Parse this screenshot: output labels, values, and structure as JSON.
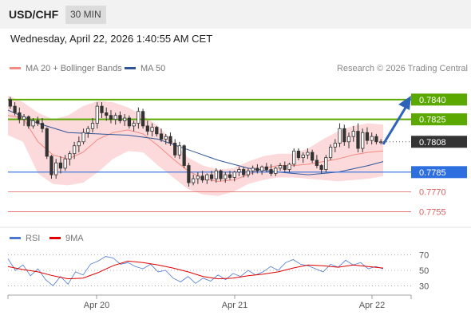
{
  "header": {
    "symbol": "USD/CHF",
    "timeframe": "30 MIN"
  },
  "datetime": "Wednesday, April 22, 2026 1:40:55 AM CET",
  "legend": {
    "main": [
      {
        "label": "MA 20 + Bollinger Bands",
        "color": "#f28b82"
      },
      {
        "label": "MA 50",
        "color": "#2f5597"
      }
    ],
    "credit": "Research © 2026 Trading Central",
    "indicator": [
      {
        "label": "RSI",
        "color": "#4a78d0"
      },
      {
        "label": "9MA",
        "color": "#e00000"
      }
    ]
  },
  "colors": {
    "resistance": "#5aa800",
    "support": "#2e6fe0",
    "support_weak": "#e06060",
    "current": "#333333",
    "arrow": "#2e63b8",
    "candle_up": "#ffffff",
    "candle_down": "#333333",
    "band_fill": "#fcd9da"
  },
  "chart_data": [
    {
      "type": "line",
      "title": "",
      "x_labels": [
        "Apr 20",
        "Apr 21",
        "Apr 22"
      ],
      "levels": [
        {
          "value": 0.784,
          "label": "0.7840",
          "kind": "resistance"
        },
        {
          "value": 0.7825,
          "label": "0.7825",
          "kind": "resistance"
        },
        {
          "value": 0.7808,
          "label": "0.7808",
          "kind": "current"
        },
        {
          "value": 0.7785,
          "label": "0.7785",
          "kind": "support"
        },
        {
          "value": 0.777,
          "label": "0.7770",
          "kind": "support_weak"
        },
        {
          "value": 0.7755,
          "label": "0.7755",
          "kind": "support_weak"
        }
      ],
      "ylim": [
        0.7745,
        0.7852
      ],
      "series": [
        {
          "name": "MA 20 + Bollinger Bands",
          "style": "band",
          "x": [
            0,
            4,
            8,
            12,
            16,
            20,
            24,
            28,
            32,
            36,
            40,
            44,
            48,
            52,
            56,
            60,
            64,
            68,
            72,
            76,
            80,
            84,
            88,
            92,
            96,
            100
          ],
          "mid": [
            0.7828,
            0.7826,
            0.7808,
            0.7798,
            0.7795,
            0.78,
            0.781,
            0.7815,
            0.7817,
            0.7814,
            0.7805,
            0.7795,
            0.7786,
            0.778,
            0.7778,
            0.7779,
            0.7783,
            0.7788,
            0.779,
            0.779,
            0.7791,
            0.7793,
            0.7795,
            0.7798,
            0.78,
            0.7801
          ],
          "upper": [
            0.7843,
            0.7838,
            0.783,
            0.7825,
            0.7828,
            0.7835,
            0.7839,
            0.7838,
            0.7834,
            0.7828,
            0.782,
            0.7808,
            0.7796,
            0.779,
            0.7787,
            0.7788,
            0.7793,
            0.7797,
            0.7799,
            0.7799,
            0.7803,
            0.781,
            0.7816,
            0.782,
            0.7822,
            0.7821
          ],
          "lower": [
            0.7813,
            0.7808,
            0.7784,
            0.7776,
            0.7775,
            0.7777,
            0.7785,
            0.7795,
            0.7801,
            0.78,
            0.779,
            0.7781,
            0.7772,
            0.7768,
            0.7767,
            0.777,
            0.7776,
            0.7779,
            0.7781,
            0.7781,
            0.778,
            0.7779,
            0.7778,
            0.7779,
            0.778,
            0.7782
          ]
        },
        {
          "name": "MA 50",
          "style": "line",
          "x": [
            0,
            8,
            16,
            24,
            32,
            40,
            48,
            56,
            64,
            72,
            80,
            88,
            96,
            100
          ],
          "values": [
            0.7832,
            0.7822,
            0.7815,
            0.7814,
            0.7813,
            0.781,
            0.7802,
            0.7794,
            0.7788,
            0.7785,
            0.7783,
            0.7785,
            0.779,
            0.7793
          ]
        }
      ],
      "candles": {
        "x_range": [
          0,
          100
        ],
        "ohlc": [
          [
            0.784,
            0.7842,
            0.7833,
            0.7835
          ],
          [
            0.7835,
            0.7838,
            0.7828,
            0.783
          ],
          [
            0.783,
            0.7834,
            0.7822,
            0.7825
          ],
          [
            0.7825,
            0.7829,
            0.782,
            0.7827
          ],
          [
            0.7827,
            0.7828,
            0.7818,
            0.782
          ],
          [
            0.782,
            0.7826,
            0.7818,
            0.7824
          ],
          [
            0.7824,
            0.7827,
            0.782,
            0.7822
          ],
          [
            0.7822,
            0.7826,
            0.7815,
            0.7818
          ],
          [
            0.7818,
            0.7819,
            0.7795,
            0.7797
          ],
          [
            0.7797,
            0.7798,
            0.778,
            0.7783
          ],
          [
            0.7783,
            0.7795,
            0.778,
            0.7792
          ],
          [
            0.7792,
            0.7797,
            0.7784,
            0.7788
          ],
          [
            0.7788,
            0.7798,
            0.7786,
            0.7795
          ],
          [
            0.7795,
            0.7801,
            0.779,
            0.7799
          ],
          [
            0.7799,
            0.7808,
            0.7795,
            0.7805
          ],
          [
            0.7805,
            0.7812,
            0.78,
            0.7808
          ],
          [
            0.7808,
            0.7818,
            0.7806,
            0.7815
          ],
          [
            0.7815,
            0.782,
            0.7811,
            0.7818
          ],
          [
            0.7818,
            0.7826,
            0.7815,
            0.7822
          ],
          [
            0.7822,
            0.7838,
            0.7818,
            0.7835
          ],
          [
            0.7835,
            0.7838,
            0.7826,
            0.783
          ],
          [
            0.783,
            0.7834,
            0.7824,
            0.7828
          ],
          [
            0.7828,
            0.7832,
            0.7822,
            0.7825
          ],
          [
            0.7825,
            0.783,
            0.7821,
            0.7828
          ],
          [
            0.7828,
            0.7831,
            0.7822,
            0.7824
          ],
          [
            0.7824,
            0.7829,
            0.782,
            0.7826
          ],
          [
            0.7826,
            0.7828,
            0.7818,
            0.782
          ],
          [
            0.782,
            0.7824,
            0.7816,
            0.7822
          ],
          [
            0.7822,
            0.7834,
            0.7818,
            0.7831
          ],
          [
            0.7831,
            0.7833,
            0.7818,
            0.782
          ],
          [
            0.782,
            0.7824,
            0.7813,
            0.7816
          ],
          [
            0.7816,
            0.7822,
            0.7812,
            0.7819
          ],
          [
            0.7819,
            0.782,
            0.7812,
            0.7814
          ],
          [
            0.7814,
            0.7818,
            0.7808,
            0.781
          ],
          [
            0.781,
            0.7814,
            0.7806,
            0.7812
          ],
          [
            0.7812,
            0.7815,
            0.7805,
            0.7807
          ],
          [
            0.7807,
            0.781,
            0.7796,
            0.7798
          ],
          [
            0.7798,
            0.7808,
            0.7795,
            0.7805
          ],
          [
            0.7805,
            0.7806,
            0.7788,
            0.779
          ],
          [
            0.779,
            0.7792,
            0.7774,
            0.7777
          ],
          [
            0.7777,
            0.7783,
            0.7775,
            0.778
          ],
          [
            0.778,
            0.7785,
            0.7776,
            0.7782
          ],
          [
            0.7782,
            0.7786,
            0.7777,
            0.7779
          ],
          [
            0.7779,
            0.7784,
            0.7776,
            0.7783
          ],
          [
            0.7783,
            0.7786,
            0.7778,
            0.778
          ],
          [
            0.778,
            0.7788,
            0.7777,
            0.7786
          ],
          [
            0.7786,
            0.7787,
            0.7778,
            0.778
          ],
          [
            0.778,
            0.7785,
            0.7777,
            0.7783
          ],
          [
            0.7783,
            0.7786,
            0.7779,
            0.7781
          ],
          [
            0.7781,
            0.7786,
            0.7778,
            0.7785
          ],
          [
            0.7785,
            0.7789,
            0.7782,
            0.7787
          ],
          [
            0.7787,
            0.7789,
            0.7781,
            0.7783
          ],
          [
            0.7783,
            0.7788,
            0.7781,
            0.7786
          ],
          [
            0.7786,
            0.779,
            0.7783,
            0.7788
          ],
          [
            0.7788,
            0.7791,
            0.7784,
            0.7786
          ],
          [
            0.7786,
            0.779,
            0.7783,
            0.7789
          ],
          [
            0.7789,
            0.7792,
            0.7785,
            0.7787
          ],
          [
            0.7787,
            0.7791,
            0.7782,
            0.7784
          ],
          [
            0.7784,
            0.7789,
            0.7782,
            0.7788
          ],
          [
            0.7788,
            0.7792,
            0.7786,
            0.779
          ],
          [
            0.779,
            0.7793,
            0.7785,
            0.7787
          ],
          [
            0.7787,
            0.7792,
            0.7785,
            0.7791
          ],
          [
            0.7791,
            0.7803,
            0.7789,
            0.7801
          ],
          [
            0.7801,
            0.7803,
            0.7794,
            0.7796
          ],
          [
            0.7796,
            0.78,
            0.7792,
            0.7798
          ],
          [
            0.7798,
            0.7803,
            0.7795,
            0.78
          ],
          [
            0.78,
            0.7802,
            0.7792,
            0.7794
          ],
          [
            0.7794,
            0.7798,
            0.7788,
            0.779
          ],
          [
            0.779,
            0.7791,
            0.7784,
            0.7787
          ],
          [
            0.7787,
            0.7798,
            0.7785,
            0.7796
          ],
          [
            0.7796,
            0.7806,
            0.7794,
            0.7804
          ],
          [
            0.7804,
            0.781,
            0.78,
            0.7807
          ],
          [
            0.7807,
            0.7822,
            0.7804,
            0.7818
          ],
          [
            0.7818,
            0.7821,
            0.7805,
            0.7808
          ],
          [
            0.7808,
            0.7815,
            0.7803,
            0.7812
          ],
          [
            0.7812,
            0.782,
            0.7808,
            0.7816
          ],
          [
            0.7816,
            0.7822,
            0.78,
            0.7803
          ],
          [
            0.7803,
            0.7818,
            0.78,
            0.7815
          ],
          [
            0.7815,
            0.7819,
            0.7806,
            0.7809
          ],
          [
            0.7809,
            0.7815,
            0.7806,
            0.7812
          ],
          [
            0.7812,
            0.7814,
            0.7806,
            0.7808
          ],
          [
            0.7808,
            0.781,
            0.7806,
            0.7808
          ]
        ]
      }
    },
    {
      "type": "line",
      "title": "",
      "yticks": [
        70,
        50,
        30
      ],
      "ylim": [
        20,
        80
      ],
      "x_labels": [
        "Apr 20",
        "Apr 21",
        "Apr 22"
      ],
      "series": [
        {
          "name": "RSI",
          "x": [
            0,
            2,
            4,
            6,
            8,
            10,
            12,
            14,
            16,
            18,
            20,
            22,
            24,
            26,
            28,
            30,
            32,
            34,
            36,
            38,
            40,
            42,
            44,
            46,
            48,
            50,
            52,
            54,
            56,
            58,
            60,
            62,
            64,
            66,
            68,
            70,
            72,
            74,
            76,
            78,
            80,
            82,
            84,
            86,
            88,
            90,
            92,
            94,
            96,
            98,
            100
          ],
          "values": [
            65,
            50,
            57,
            43,
            52,
            38,
            30,
            42,
            32,
            48,
            44,
            58,
            62,
            68,
            66,
            58,
            60,
            55,
            52,
            58,
            48,
            50,
            40,
            35,
            42,
            33,
            40,
            36,
            44,
            38,
            46,
            42,
            50,
            44,
            48,
            55,
            50,
            60,
            64,
            58,
            56,
            52,
            48,
            58,
            54,
            63,
            57,
            60,
            52,
            55,
            52
          ]
        },
        {
          "name": "9MA",
          "x": [
            0,
            4,
            8,
            12,
            16,
            20,
            24,
            28,
            32,
            36,
            40,
            44,
            48,
            52,
            56,
            60,
            64,
            68,
            72,
            76,
            80,
            84,
            88,
            92,
            96,
            100
          ],
          "values": [
            55,
            51,
            48,
            43,
            39,
            40,
            47,
            56,
            62,
            60,
            57,
            53,
            48,
            42,
            39,
            40,
            43,
            45,
            48,
            53,
            57,
            56,
            54,
            57,
            55,
            53
          ]
        }
      ]
    }
  ]
}
